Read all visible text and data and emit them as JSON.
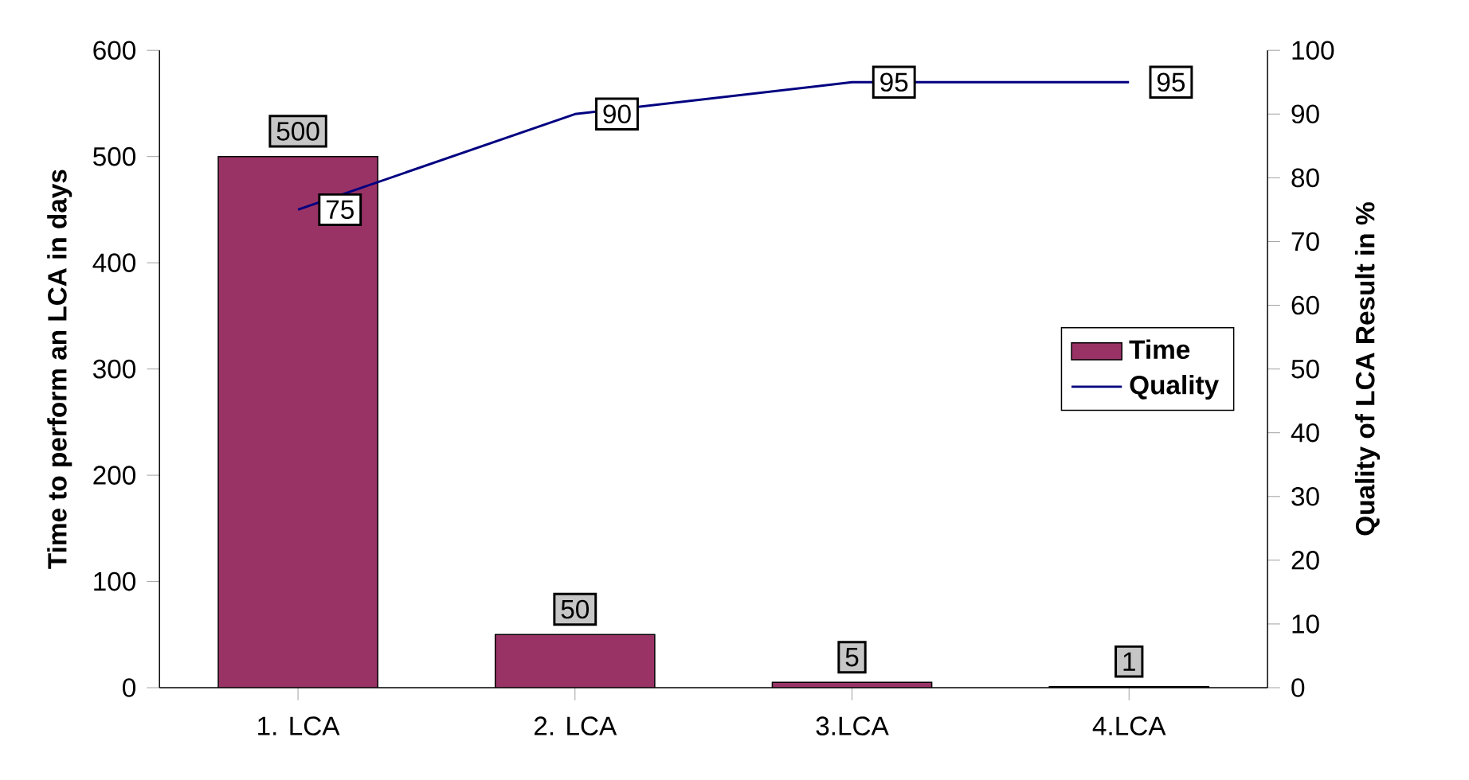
{
  "chart_data": {
    "type": "bar",
    "categories": [
      "1. LCA",
      "2. LCA",
      "3.LCA",
      "4.LCA"
    ],
    "ylabel": "Time to perform an LCA in days",
    "y2label": "Quality of LCA Result in %",
    "series": [
      {
        "name": "Time",
        "color": "#993366",
        "values": [
          500,
          50,
          5,
          1
        ]
      },
      {
        "name": "Quality",
        "type": "line",
        "axis": "y2",
        "color": "#000080",
        "values": [
          75,
          90,
          95,
          95
        ]
      }
    ],
    "ylim": [
      0,
      600
    ],
    "yticks": [
      0,
      100,
      200,
      300,
      400,
      500,
      600
    ],
    "y2lim": [
      0,
      100
    ],
    "y2ticks": [
      0,
      10,
      20,
      30,
      40,
      50,
      60,
      70,
      80,
      90,
      100
    ],
    "data_labels": true,
    "legend": "right",
    "grid": false
  }
}
